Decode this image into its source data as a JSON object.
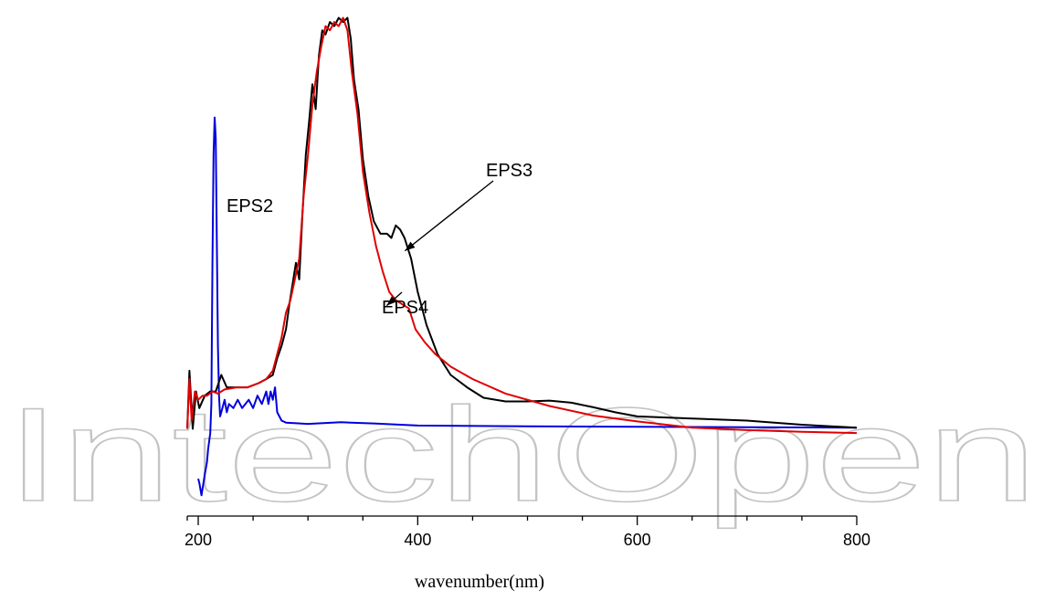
{
  "watermark": {
    "text": "IntechOpen"
  },
  "chart_data": {
    "type": "line",
    "xlabel": "wavenumber(nm)",
    "ylabel": "",
    "xlim": [
      190,
      800
    ],
    "ylim": [
      -0.1,
      1.0
    ],
    "x_ticks": [
      200,
      400,
      600,
      800
    ],
    "y_axis_visible": false,
    "grid": false,
    "legend": "none",
    "series": [
      {
        "name": "EPS3",
        "color": "#000000",
        "points": [
          [
            190,
            0.0
          ],
          [
            192,
            0.14
          ],
          [
            195,
            0.0
          ],
          [
            198,
            0.09
          ],
          [
            201,
            0.05
          ],
          [
            206,
            0.08
          ],
          [
            211,
            0.09
          ],
          [
            216,
            0.09
          ],
          [
            221,
            0.13
          ],
          [
            226,
            0.1
          ],
          [
            235,
            0.1
          ],
          [
            245,
            0.1
          ],
          [
            255,
            0.11
          ],
          [
            262,
            0.12
          ],
          [
            268,
            0.13
          ],
          [
            272,
            0.17
          ],
          [
            276,
            0.2
          ],
          [
            280,
            0.24
          ],
          [
            283,
            0.3
          ],
          [
            286,
            0.35
          ],
          [
            289,
            0.4
          ],
          [
            292,
            0.36
          ],
          [
            295,
            0.52
          ],
          [
            298,
            0.66
          ],
          [
            301,
            0.74
          ],
          [
            304,
            0.83
          ],
          [
            307,
            0.77
          ],
          [
            310,
            0.9
          ],
          [
            313,
            0.96
          ],
          [
            316,
            0.95
          ],
          [
            320,
            0.98
          ],
          [
            324,
            0.97
          ],
          [
            328,
            0.99
          ],
          [
            332,
            0.98
          ],
          [
            336,
            0.99
          ],
          [
            339,
            0.94
          ],
          [
            342,
            0.84
          ],
          [
            346,
            0.77
          ],
          [
            350,
            0.65
          ],
          [
            355,
            0.56
          ],
          [
            360,
            0.5
          ],
          [
            366,
            0.47
          ],
          [
            372,
            0.47
          ],
          [
            376,
            0.46
          ],
          [
            380,
            0.49
          ],
          [
            384,
            0.48
          ],
          [
            388,
            0.46
          ],
          [
            394,
            0.41
          ],
          [
            400,
            0.33
          ],
          [
            408,
            0.25
          ],
          [
            418,
            0.18
          ],
          [
            430,
            0.13
          ],
          [
            445,
            0.1
          ],
          [
            460,
            0.075
          ],
          [
            480,
            0.066
          ],
          [
            500,
            0.066
          ],
          [
            520,
            0.068
          ],
          [
            540,
            0.063
          ],
          [
            560,
            0.052
          ],
          [
            580,
            0.04
          ],
          [
            600,
            0.03
          ],
          [
            650,
            0.025
          ],
          [
            700,
            0.02
          ],
          [
            750,
            0.01
          ],
          [
            800,
            0.003
          ]
        ]
      },
      {
        "name": "EPS4",
        "color": "#e00000",
        "points": [
          [
            190,
            0.0
          ],
          [
            192,
            0.12
          ],
          [
            194,
            0.02
          ],
          [
            197,
            0.09
          ],
          [
            200,
            0.07
          ],
          [
            204,
            0.08
          ],
          [
            208,
            0.08
          ],
          [
            213,
            0.09
          ],
          [
            218,
            0.085
          ],
          [
            224,
            0.095
          ],
          [
            235,
            0.1
          ],
          [
            245,
            0.1
          ],
          [
            255,
            0.11
          ],
          [
            262,
            0.12
          ],
          [
            268,
            0.14
          ],
          [
            272,
            0.18
          ],
          [
            276,
            0.22
          ],
          [
            280,
            0.28
          ],
          [
            284,
            0.31
          ],
          [
            288,
            0.36
          ],
          [
            292,
            0.41
          ],
          [
            296,
            0.56
          ],
          [
            300,
            0.66
          ],
          [
            304,
            0.78
          ],
          [
            308,
            0.86
          ],
          [
            312,
            0.92
          ],
          [
            316,
            0.97
          ],
          [
            320,
            0.96
          ],
          [
            324,
            0.98
          ],
          [
            328,
            0.97
          ],
          [
            332,
            0.99
          ],
          [
            336,
            0.96
          ],
          [
            340,
            0.86
          ],
          [
            345,
            0.76
          ],
          [
            350,
            0.62
          ],
          [
            356,
            0.52
          ],
          [
            362,
            0.44
          ],
          [
            368,
            0.38
          ],
          [
            374,
            0.33
          ],
          [
            380,
            0.31
          ],
          [
            386,
            0.3
          ],
          [
            392,
            0.29
          ],
          [
            398,
            0.24
          ],
          [
            406,
            0.21
          ],
          [
            416,
            0.18
          ],
          [
            430,
            0.15
          ],
          [
            450,
            0.12
          ],
          [
            480,
            0.085
          ],
          [
            520,
            0.055
          ],
          [
            560,
            0.032
          ],
          [
            600,
            0.018
          ],
          [
            650,
            0.003
          ],
          [
            700,
            -0.003
          ],
          [
            750,
            -0.007
          ],
          [
            800,
            -0.01
          ]
        ]
      },
      {
        "name": "EPS2",
        "color": "#0000dd",
        "points": [
          [
            200,
            -0.12
          ],
          [
            201,
            -0.13
          ],
          [
            203,
            -0.16
          ],
          [
            206,
            -0.11
          ],
          [
            208,
            -0.08
          ],
          [
            209,
            -0.05
          ],
          [
            211,
            -0.01
          ],
          [
            212,
            0.06
          ],
          [
            213,
            0.4
          ],
          [
            214,
            0.66
          ],
          [
            215,
            0.75
          ],
          [
            216,
            0.7
          ],
          [
            217,
            0.45
          ],
          [
            218,
            0.2
          ],
          [
            219,
            0.08
          ],
          [
            220,
            0.03
          ],
          [
            222,
            0.05
          ],
          [
            224,
            0.07
          ],
          [
            226,
            0.04
          ],
          [
            228,
            0.06
          ],
          [
            232,
            0.05
          ],
          [
            236,
            0.07
          ],
          [
            240,
            0.05
          ],
          [
            246,
            0.07
          ],
          [
            250,
            0.05
          ],
          [
            254,
            0.08
          ],
          [
            258,
            0.06
          ],
          [
            262,
            0.09
          ],
          [
            264,
            0.06
          ],
          [
            266,
            0.09
          ],
          [
            268,
            0.07
          ],
          [
            270,
            0.1
          ],
          [
            272,
            0.04
          ],
          [
            276,
            0.02
          ],
          [
            280,
            0.015
          ],
          [
            300,
            0.012
          ],
          [
            330,
            0.016
          ],
          [
            360,
            0.013
          ],
          [
            400,
            0.008
          ],
          [
            500,
            0.006
          ],
          [
            600,
            0.005
          ],
          [
            700,
            0.004
          ],
          [
            800,
            0.003
          ]
        ]
      }
    ],
    "annotations": [
      {
        "text": "EPS2",
        "series": "EPS2"
      },
      {
        "text": "EPS3",
        "series": "EPS3",
        "arrow_to": [
          385,
          0.42
        ]
      },
      {
        "text": "EPS4",
        "series": "EPS4",
        "arrow_to": [
          375,
          0.31
        ]
      }
    ]
  }
}
